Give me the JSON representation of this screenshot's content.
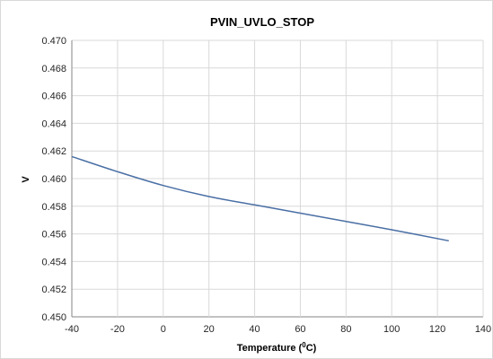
{
  "chart_data": {
    "type": "line",
    "title": "PVIN_UVLO_STOP",
    "xlabel": "Temperature (",
    "xlabel_sup": "0",
    "xlabel_tail": "C)",
    "ylabel": "V",
    "xlim": [
      -40,
      140
    ],
    "ylim": [
      0.45,
      0.47
    ],
    "x_ticks": [
      -40,
      -20,
      0,
      20,
      40,
      60,
      80,
      100,
      120,
      140
    ],
    "y_ticks": [
      "0.450",
      "0.452",
      "0.454",
      "0.456",
      "0.458",
      "0.460",
      "0.462",
      "0.464",
      "0.466",
      "0.468",
      "0.470"
    ],
    "grid": true,
    "series": [
      {
        "x": [
          -40,
          -20,
          0,
          20,
          40,
          60,
          80,
          100,
          125
        ],
        "y": [
          0.4616,
          0.4605,
          0.4595,
          0.4587,
          0.4581,
          0.4575,
          0.4569,
          0.4563,
          0.4555
        ]
      }
    ]
  },
  "colors": {
    "series": "#4a6fa5"
  }
}
